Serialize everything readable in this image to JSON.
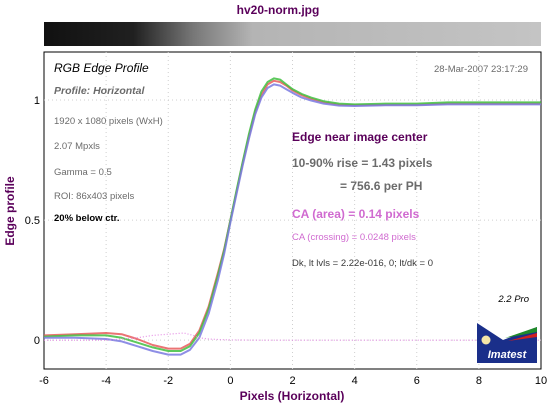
{
  "chart_data": {
    "type": "line",
    "title": "hv20-norm.jpg",
    "xlabel": "Pixels (Horizontal)",
    "ylabel": "Edge profile",
    "xlim": [
      -6,
      10
    ],
    "ylim": [
      -0.12,
      1.2
    ],
    "xticks": [
      -6,
      -4,
      -2,
      0,
      2,
      4,
      6,
      8,
      10
    ],
    "yticks": [
      0,
      0.5,
      1
    ],
    "xtick_labels": [
      "-6",
      "-4",
      "-2",
      "0",
      "2",
      "4",
      "6",
      "8",
      "10"
    ],
    "ytick_labels": [
      "0",
      "0.5",
      "1"
    ],
    "grid": true,
    "series": [
      {
        "color": "#e85c5c",
        "x": [
          -6,
          -5,
          -4,
          -3.5,
          -3,
          -2.5,
          -2,
          -1.6,
          -1.3,
          -1,
          -0.7,
          -0.4,
          -0.2,
          0,
          0.2,
          0.4,
          0.6,
          0.8,
          1,
          1.2,
          1.4,
          1.6,
          1.8,
          2,
          2.3,
          2.6,
          3,
          3.5,
          4,
          5,
          6,
          7,
          8,
          9,
          10
        ],
        "y": [
          0.02,
          0.025,
          0.03,
          0.025,
          0.005,
          -0.02,
          -0.035,
          -0.035,
          -0.015,
          0.04,
          0.14,
          0.28,
          0.38,
          0.5,
          0.62,
          0.74,
          0.85,
          0.95,
          1.02,
          1.065,
          1.08,
          1.075,
          1.06,
          1.04,
          1.02,
          1.005,
          0.99,
          0.98,
          0.978,
          0.98,
          0.98,
          0.985,
          0.985,
          0.985,
          0.985
        ]
      },
      {
        "color": "#3fbf3f",
        "x": [
          -6,
          -5,
          -4,
          -3.5,
          -3,
          -2.5,
          -2,
          -1.6,
          -1.3,
          -1,
          -0.7,
          -0.4,
          -0.2,
          0,
          0.2,
          0.4,
          0.6,
          0.8,
          1,
          1.2,
          1.4,
          1.6,
          1.8,
          2,
          2.3,
          2.6,
          3,
          3.5,
          4,
          5,
          6,
          7,
          8,
          9,
          10
        ],
        "y": [
          0.015,
          0.02,
          0.02,
          0.01,
          -0.01,
          -0.03,
          -0.045,
          -0.045,
          -0.025,
          0.03,
          0.13,
          0.27,
          0.375,
          0.5,
          0.625,
          0.745,
          0.86,
          0.96,
          1.035,
          1.075,
          1.09,
          1.085,
          1.065,
          1.045,
          1.025,
          1.01,
          0.995,
          0.985,
          0.982,
          0.985,
          0.985,
          0.99,
          0.99,
          0.99,
          0.99
        ]
      },
      {
        "color": "#7a7ae0",
        "x": [
          -6,
          -5,
          -4,
          -3.5,
          -3,
          -2.5,
          -2,
          -1.6,
          -1.3,
          -1,
          -0.7,
          -0.4,
          -0.2,
          0,
          0.2,
          0.4,
          0.6,
          0.8,
          1,
          1.2,
          1.4,
          1.6,
          1.8,
          2,
          2.3,
          2.6,
          3,
          3.5,
          4,
          5,
          6,
          7,
          8,
          9,
          10
        ],
        "y": [
          0.01,
          0.01,
          0.005,
          -0.005,
          -0.025,
          -0.045,
          -0.06,
          -0.06,
          -0.04,
          0.01,
          0.11,
          0.25,
          0.36,
          0.49,
          0.61,
          0.73,
          0.84,
          0.94,
          1.01,
          1.05,
          1.065,
          1.06,
          1.045,
          1.03,
          1.01,
          0.998,
          0.985,
          0.977,
          0.975,
          0.978,
          0.978,
          0.982,
          0.982,
          0.982,
          0.982
        ]
      },
      {
        "color": "#e07ae0",
        "style": "dotted",
        "x": [
          -6,
          -5,
          -4,
          -3,
          -2.5,
          -2,
          -1.5,
          -1.2,
          -1,
          -0.7,
          -0.4,
          -0.2,
          0,
          1,
          2,
          4,
          6,
          8,
          10
        ],
        "y": [
          0.0,
          0.0,
          0.0,
          0.01,
          0.02,
          0.025,
          0.03,
          0.02,
          0.01,
          0.005,
          0.003,
          0.002,
          0.001,
          0.0,
          0.0,
          0.0,
          0.0,
          0.0,
          0.0
        ]
      }
    ]
  },
  "info": {
    "heading": "RGB Edge Profile",
    "profile": "Profile: Horizontal",
    "date": "28-Mar-2007 23:17:29",
    "lines": [
      "1920 x 1080 pixels (WxH)",
      "2.07 Mpxls",
      "Gamma = 0.5",
      "ROI: 86x403 pixels"
    ],
    "below_ctr": "20% below ctr.",
    "edge_near_center": "Edge near image center",
    "rise": "10-90% rise = 1.43 pixels",
    "per_ph": "= 756.6 per PH",
    "ca_area": "CA (area) = 0.14 pixels",
    "ca_crossing": "CA (crossing) = 0.0248 pixels",
    "dk": "Dk, lt lvls = 2.22e-016, 0;  lt/dk = 0",
    "version": "2.2  Pro",
    "logo_text": "Imatest"
  }
}
